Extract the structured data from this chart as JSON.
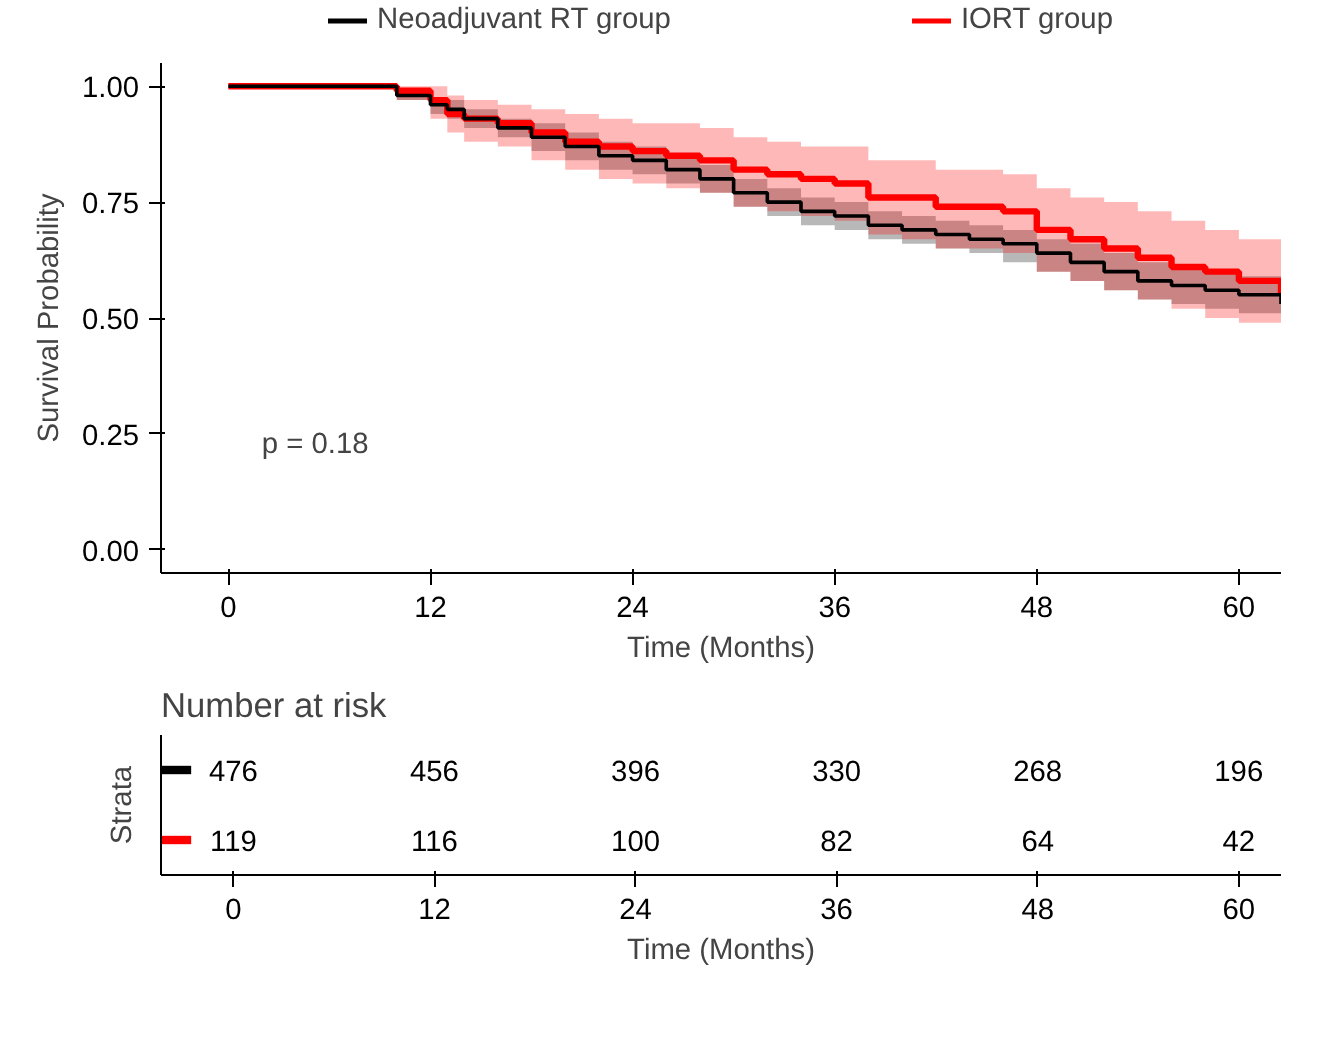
{
  "chart_data": [
    {
      "type": "step",
      "xlabel": "Time (Months)",
      "ylabel": "Survival Probability",
      "x": [
        0,
        6,
        10,
        12,
        13,
        14,
        16,
        18,
        20,
        22,
        24,
        26,
        28,
        30,
        32,
        34,
        36,
        38,
        40,
        42,
        44,
        46,
        48,
        50,
        52,
        54,
        56,
        58,
        60,
        62.5
      ],
      "series": [
        {
          "name": "Neoadjuvant RT group",
          "color": "#000000",
          "values": [
            1.0,
            1.0,
            0.98,
            0.96,
            0.95,
            0.93,
            0.91,
            0.89,
            0.87,
            0.85,
            0.84,
            0.82,
            0.8,
            0.77,
            0.75,
            0.73,
            0.72,
            0.7,
            0.69,
            0.68,
            0.67,
            0.66,
            0.64,
            0.62,
            0.6,
            0.58,
            0.57,
            0.56,
            0.55,
            0.53
          ],
          "lower": [
            1.0,
            1.0,
            0.97,
            0.94,
            0.93,
            0.91,
            0.89,
            0.86,
            0.84,
            0.82,
            0.81,
            0.79,
            0.77,
            0.74,
            0.72,
            0.7,
            0.69,
            0.67,
            0.66,
            0.65,
            0.64,
            0.62,
            0.6,
            0.58,
            0.56,
            0.54,
            0.53,
            0.52,
            0.51,
            0.49
          ],
          "upper": [
            1.0,
            1.0,
            0.99,
            0.97,
            0.97,
            0.95,
            0.93,
            0.92,
            0.9,
            0.88,
            0.87,
            0.85,
            0.83,
            0.8,
            0.78,
            0.76,
            0.75,
            0.73,
            0.72,
            0.71,
            0.7,
            0.69,
            0.67,
            0.66,
            0.64,
            0.62,
            0.61,
            0.6,
            0.59,
            0.57
          ]
        },
        {
          "name": "IORT group",
          "color": "#ff0000",
          "values": [
            1.0,
            1.0,
            0.99,
            0.97,
            0.94,
            0.93,
            0.92,
            0.9,
            0.88,
            0.87,
            0.86,
            0.85,
            0.84,
            0.82,
            0.81,
            0.8,
            0.79,
            0.76,
            0.76,
            0.74,
            0.74,
            0.73,
            0.69,
            0.67,
            0.65,
            0.63,
            0.61,
            0.6,
            0.58,
            0.55
          ],
          "lower": [
            1.0,
            1.0,
            0.97,
            0.93,
            0.9,
            0.88,
            0.87,
            0.84,
            0.82,
            0.8,
            0.79,
            0.78,
            0.77,
            0.74,
            0.73,
            0.72,
            0.71,
            0.68,
            0.67,
            0.65,
            0.65,
            0.64,
            0.6,
            0.58,
            0.56,
            0.54,
            0.52,
            0.5,
            0.49,
            0.46
          ],
          "upper": [
            1.0,
            1.0,
            1.0,
            1.0,
            0.98,
            0.97,
            0.96,
            0.95,
            0.94,
            0.93,
            0.92,
            0.92,
            0.91,
            0.89,
            0.88,
            0.87,
            0.87,
            0.84,
            0.84,
            0.82,
            0.82,
            0.81,
            0.78,
            0.76,
            0.75,
            0.73,
            0.71,
            0.69,
            0.67,
            0.65
          ]
        }
      ],
      "xlim": [
        -4,
        62.5
      ],
      "ylim": [
        -0.05,
        1.05
      ],
      "xticks": [
        0,
        12,
        24,
        36,
        48,
        60
      ],
      "yticks": [
        {
          "value": 0,
          "label": "0.00"
        },
        {
          "value": 0.25,
          "label": "0.25"
        },
        {
          "value": 0.5,
          "label": "0.50"
        },
        {
          "value": 0.75,
          "label": "0.75"
        },
        {
          "value": 1,
          "label": "1.00"
        }
      ],
      "legend": "top",
      "grid": false,
      "annotations": [
        "p = 0.18"
      ]
    },
    {
      "type": "heatmap",
      "title": "Number at risk",
      "ylabel": "Strata",
      "xlabel": "Time (Months)",
      "categories": [
        "0",
        "12",
        "24",
        "36",
        "48",
        "60"
      ],
      "y_categories": [
        null,
        null
      ],
      "colors": [
        "#000000",
        "#ff0000"
      ],
      "data_labels": true,
      "cells": [
        [
          476,
          456,
          396,
          330,
          268,
          196
        ],
        [
          119,
          116,
          100,
          82,
          64,
          42
        ]
      ]
    }
  ]
}
